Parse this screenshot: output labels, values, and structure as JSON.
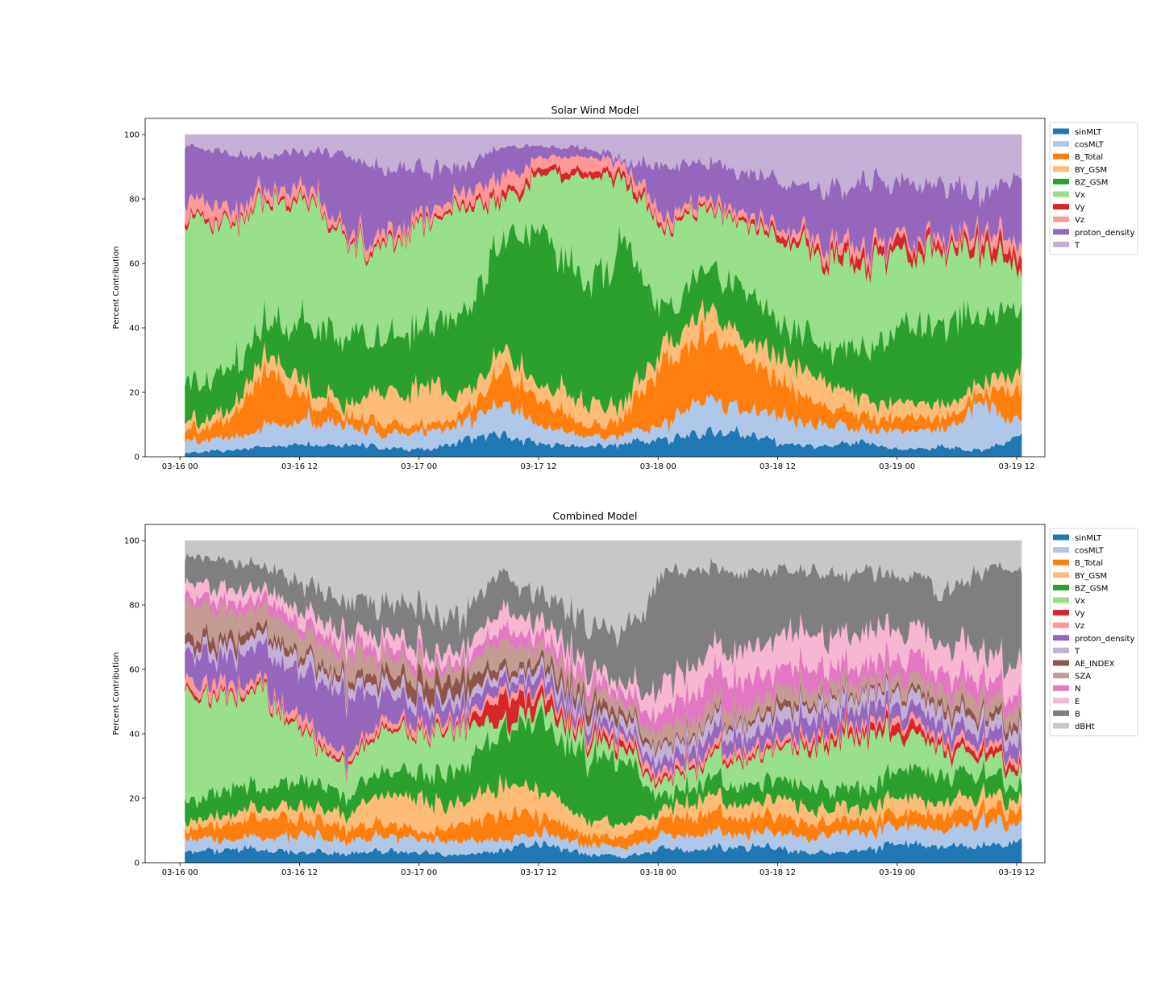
{
  "chart_data": [
    {
      "type": "area",
      "stacked": true,
      "normalized_percent": true,
      "title": "Solar Wind Model",
      "xlabel": "",
      "ylabel": "Percent Contribution",
      "ylim": [
        0,
        105
      ],
      "yticks": [
        0,
        20,
        40,
        60,
        80,
        100
      ],
      "xlim": [
        "2013-03-15T20:30",
        "2013-03-19T14:50"
      ],
      "x_range": [
        "2013-03-16T00:30",
        "2013-03-19T12:30"
      ],
      "xticks": [
        "2013-03-16T00:00",
        "2013-03-16T12:00",
        "2013-03-17T00:00",
        "2013-03-17T12:00",
        "2013-03-18T00:00",
        "2013-03-18T12:00",
        "2013-03-19T00:00",
        "2013-03-19T12:00"
      ],
      "xtick_labels": [
        "03-16 00",
        "03-16 12",
        "03-17 00",
        "03-17 12",
        "03-18 00",
        "03-18 12",
        "03-19 00",
        "03-19 12"
      ],
      "grid": false,
      "legend": "outside-right-top",
      "x": [
        "2013-03-16T00:30",
        "2013-03-16T04:30",
        "2013-03-16T08:30",
        "2013-03-16T12:30",
        "2013-03-16T16:30",
        "2013-03-16T20:30",
        "2013-03-17T00:30",
        "2013-03-17T04:30",
        "2013-03-17T08:30",
        "2013-03-17T12:30",
        "2013-03-17T16:30",
        "2013-03-17T20:30",
        "2013-03-18T00:30",
        "2013-03-18T04:30",
        "2013-03-18T08:30",
        "2013-03-18T12:30",
        "2013-03-18T16:30",
        "2013-03-18T20:30",
        "2013-03-19T00:30",
        "2013-03-19T04:30",
        "2013-03-19T08:30",
        "2013-03-19T12:30"
      ],
      "series": [
        {
          "name": "sinMLT",
          "color": "#1f77b4",
          "values": [
            1,
            2,
            3,
            4,
            4,
            3,
            2,
            5,
            7,
            4,
            3,
            4,
            5,
            7,
            8,
            4,
            3,
            4,
            2,
            3,
            2,
            6
          ]
        },
        {
          "name": "cosMLT",
          "color": "#aec7e8",
          "values": [
            3,
            4,
            6,
            7,
            6,
            4,
            5,
            6,
            10,
            6,
            3,
            3,
            4,
            12,
            7,
            8,
            6,
            4,
            6,
            5,
            14,
            4
          ]
        },
        {
          "name": "B_Total",
          "color": "#ff7f0e",
          "values": [
            3,
            5,
            18,
            6,
            3,
            3,
            2,
            3,
            10,
            8,
            3,
            5,
            20,
            20,
            15,
            10,
            6,
            4,
            4,
            4,
            3,
            12
          ]
        },
        {
          "name": "BY_GSM",
          "color": "#ffbb78",
          "values": [
            2,
            3,
            5,
            4,
            3,
            10,
            12,
            5,
            6,
            5,
            8,
            4,
            5,
            8,
            6,
            9,
            8,
            5,
            5,
            4,
            3,
            5
          ]
        },
        {
          "name": "BZ_GSM",
          "color": "#2ca02c",
          "values": [
            12,
            12,
            10,
            18,
            20,
            18,
            20,
            25,
            35,
            45,
            35,
            50,
            10,
            12,
            15,
            10,
            10,
            15,
            25,
            25,
            20,
            20
          ]
        },
        {
          "name": "Vx",
          "color": "#98df8a",
          "values": [
            55,
            45,
            38,
            42,
            30,
            28,
            32,
            35,
            10,
            20,
            34,
            20,
            28,
            18,
            22,
            25,
            30,
            28,
            22,
            24,
            22,
            10
          ]
        },
        {
          "name": "Vy",
          "color": "#d62728",
          "values": [
            1,
            1,
            1,
            1,
            1,
            1,
            1,
            1,
            2,
            2,
            2,
            2,
            1,
            1,
            1,
            2,
            2,
            3,
            3,
            2,
            3,
            4
          ]
        },
        {
          "name": "Vz",
          "color": "#ff9896",
          "values": [
            5,
            4,
            3,
            3,
            2,
            3,
            2,
            3,
            6,
            3,
            5,
            3,
            3,
            2,
            2,
            2,
            3,
            3,
            2,
            2,
            3,
            4
          ]
        },
        {
          "name": "proton_density",
          "color": "#9467bd",
          "values": [
            15,
            18,
            10,
            10,
            25,
            20,
            14,
            7,
            10,
            3,
            3,
            1,
            14,
            12,
            12,
            15,
            14,
            20,
            16,
            16,
            12,
            20
          ]
        },
        {
          "name": "T",
          "color": "#c5b0d5",
          "values": [
            3,
            6,
            6,
            5,
            6,
            10,
            10,
            10,
            4,
            4,
            4,
            8,
            10,
            8,
            12,
            15,
            18,
            14,
            15,
            15,
            18,
            15
          ]
        }
      ]
    },
    {
      "type": "area",
      "stacked": true,
      "normalized_percent": true,
      "title": "Combined Model",
      "xlabel": "",
      "ylabel": "Percent Contribution",
      "ylim": [
        0,
        105
      ],
      "yticks": [
        0,
        20,
        40,
        60,
        80,
        100
      ],
      "xlim": [
        "2013-03-15T20:30",
        "2013-03-19T14:50"
      ],
      "x_range": [
        "2013-03-16T00:30",
        "2013-03-19T12:30"
      ],
      "xticks": [
        "2013-03-16T00:00",
        "2013-03-16T12:00",
        "2013-03-17T00:00",
        "2013-03-17T12:00",
        "2013-03-18T00:00",
        "2013-03-18T12:00",
        "2013-03-19T00:00",
        "2013-03-19T12:00"
      ],
      "xtick_labels": [
        "03-16 00",
        "03-16 12",
        "03-17 00",
        "03-17 12",
        "03-18 00",
        "03-18 12",
        "03-19 00",
        "03-19 12"
      ],
      "grid": false,
      "legend": "outside-right-top",
      "x": [
        "2013-03-16T00:30",
        "2013-03-16T04:30",
        "2013-03-16T08:30",
        "2013-03-16T12:30",
        "2013-03-16T16:30",
        "2013-03-16T20:30",
        "2013-03-17T00:30",
        "2013-03-17T04:30",
        "2013-03-17T08:30",
        "2013-03-17T12:30",
        "2013-03-17T16:30",
        "2013-03-17T20:30",
        "2013-03-18T00:30",
        "2013-03-18T04:30",
        "2013-03-18T08:30",
        "2013-03-18T12:30",
        "2013-03-18T16:30",
        "2013-03-18T20:30",
        "2013-03-19T00:30",
        "2013-03-19T04:30",
        "2013-03-19T08:30",
        "2013-03-19T12:30"
      ],
      "series": [
        {
          "name": "sinMLT",
          "color": "#1f77b4",
          "values": [
            3,
            4,
            4,
            3,
            3,
            4,
            3,
            2,
            4,
            6,
            3,
            2,
            4,
            4,
            5,
            4,
            3,
            4,
            6,
            5,
            5,
            8
          ]
        },
        {
          "name": "cosMLT",
          "color": "#aec7e8",
          "values": [
            4,
            3,
            4,
            5,
            4,
            5,
            4,
            4,
            3,
            3,
            3,
            3,
            4,
            5,
            4,
            5,
            5,
            6,
            6,
            5,
            8,
            5
          ]
        },
        {
          "name": "B_Total",
          "color": "#ff7f0e",
          "values": [
            3,
            5,
            6,
            5,
            4,
            4,
            2,
            6,
            8,
            5,
            3,
            3,
            5,
            6,
            5,
            5,
            4,
            4,
            4,
            5,
            4,
            4
          ]
        },
        {
          "name": "BY_GSM",
          "color": "#ffbb78",
          "values": [
            2,
            3,
            3,
            4,
            4,
            10,
            10,
            6,
            10,
            8,
            5,
            4,
            3,
            5,
            4,
            6,
            4,
            4,
            5,
            4,
            4,
            4
          ]
        },
        {
          "name": "BZ_GSM",
          "color": "#2ca02c",
          "values": [
            6,
            8,
            6,
            8,
            6,
            7,
            8,
            10,
            18,
            22,
            20,
            22,
            4,
            5,
            6,
            6,
            6,
            6,
            8,
            8,
            6,
            5
          ]
        },
        {
          "name": "Vx",
          "color": "#98df8a",
          "values": [
            35,
            30,
            30,
            15,
            10,
            12,
            12,
            14,
            2,
            4,
            6,
            4,
            4,
            6,
            8,
            10,
            14,
            16,
            10,
            8,
            6,
            4
          ]
        },
        {
          "name": "Vy",
          "color": "#d62728",
          "values": [
            1,
            1,
            1,
            1,
            1,
            1,
            1,
            1,
            8,
            3,
            2,
            2,
            1,
            1,
            1,
            1,
            2,
            2,
            3,
            2,
            2,
            2
          ]
        },
        {
          "name": "Vz",
          "color": "#ff9896",
          "values": [
            3,
            3,
            2,
            3,
            2,
            2,
            2,
            2,
            2,
            2,
            2,
            2,
            2,
            2,
            2,
            2,
            2,
            2,
            2,
            2,
            2,
            2
          ]
        },
        {
          "name": "proton_density",
          "color": "#9467bd",
          "values": [
            8,
            8,
            10,
            15,
            18,
            8,
            6,
            4,
            3,
            4,
            3,
            2,
            3,
            4,
            4,
            5,
            5,
            5,
            4,
            4,
            4,
            4
          ]
        },
        {
          "name": "T",
          "color": "#c5b0d5",
          "values": [
            2,
            3,
            4,
            4,
            3,
            3,
            3,
            3,
            2,
            3,
            3,
            3,
            4,
            4,
            4,
            4,
            4,
            4,
            4,
            4,
            4,
            4
          ]
        },
        {
          "name": "AE_INDEX",
          "color": "#8c564b",
          "values": [
            3,
            3,
            2,
            2,
            2,
            3,
            5,
            5,
            2,
            2,
            4,
            2,
            1,
            1,
            1,
            2,
            1,
            1,
            1,
            2,
            2,
            2
          ]
        },
        {
          "name": "SZA",
          "color": "#c49c94",
          "values": [
            10,
            8,
            6,
            6,
            8,
            5,
            4,
            3,
            8,
            4,
            4,
            3,
            5,
            4,
            4,
            5,
            4,
            3,
            4,
            5,
            5,
            4
          ]
        },
        {
          "name": "N",
          "color": "#e377c2",
          "values": [
            2,
            3,
            3,
            3,
            3,
            3,
            2,
            2,
            4,
            3,
            3,
            3,
            6,
            8,
            10,
            6,
            6,
            5,
            6,
            6,
            5,
            4
          ]
        },
        {
          "name": "E",
          "color": "#f7b6d2",
          "values": [
            4,
            4,
            3,
            4,
            4,
            4,
            4,
            3,
            6,
            5,
            4,
            3,
            8,
            8,
            8,
            10,
            10,
            10,
            8,
            10,
            8,
            10
          ]
        },
        {
          "name": "B",
          "color": "#7f7f7f",
          "values": [
            8,
            8,
            8,
            8,
            10,
            10,
            12,
            10,
            10,
            8,
            12,
            15,
            35,
            30,
            24,
            20,
            20,
            18,
            18,
            15,
            25,
            30
          ]
        },
        {
          "name": "dBHt",
          "color": "#c7c7c7",
          "values": [
            6,
            6,
            8,
            14,
            18,
            19,
            22,
            25,
            10,
            18,
            26,
            27,
            11,
            8,
            10,
            9,
            10,
            10,
            11,
            15,
            10,
            8
          ]
        }
      ]
    }
  ]
}
